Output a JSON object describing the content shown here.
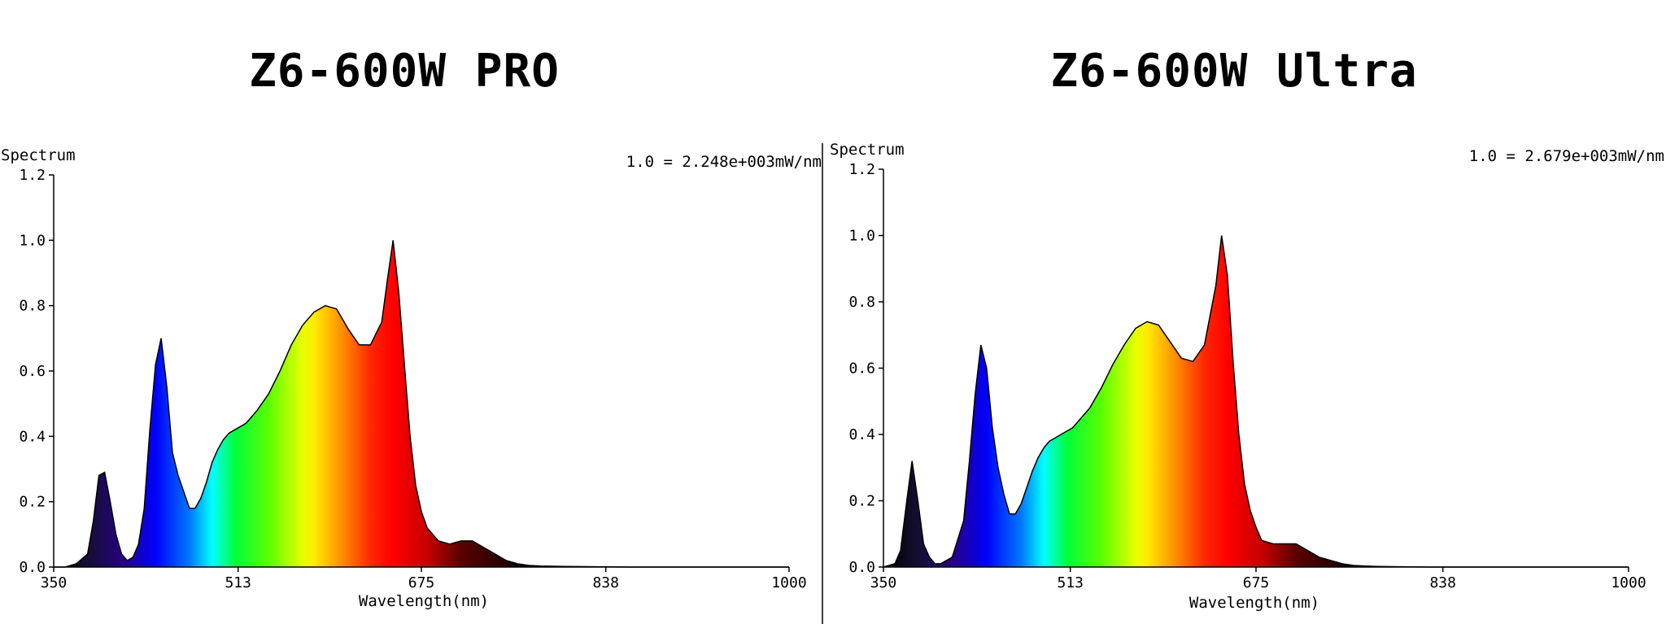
{
  "colors": {
    "axis": "#000000",
    "background": "#ffffff",
    "divider": "#000000"
  },
  "chart_data": [
    {
      "type": "area",
      "title": "Z6-600W PRO",
      "ylabel": "Spectrum",
      "xlabel": "Wavelength(nm)",
      "annotation": "1.0 = 2.248e+003mW/nm",
      "xlim": [
        350,
        1000
      ],
      "ylim": [
        0,
        1.2
      ],
      "xticks": [
        350,
        513,
        675,
        838,
        1000
      ],
      "xtick_labels": [
        "350",
        "513",
        "675",
        "838",
        "1000"
      ],
      "yticks": [
        0,
        0.2,
        0.4,
        0.6,
        0.8,
        1.0,
        1.2
      ],
      "ytick_labels": [
        "0.0",
        "0.2",
        "0.4",
        "0.6",
        "0.8",
        "1.0",
        "1.2"
      ],
      "fill": "wavelength-colored spectrum",
      "x": [
        350,
        360,
        370,
        380,
        385,
        390,
        395,
        400,
        405,
        410,
        415,
        420,
        425,
        430,
        435,
        440,
        445,
        450,
        455,
        460,
        465,
        470,
        475,
        480,
        485,
        490,
        495,
        500,
        505,
        510,
        515,
        520,
        525,
        530,
        540,
        550,
        560,
        570,
        580,
        590,
        600,
        610,
        620,
        630,
        640,
        645,
        650,
        655,
        660,
        665,
        670,
        675,
        680,
        690,
        700,
        710,
        720,
        730,
        740,
        750,
        760,
        770,
        780,
        800,
        830,
        860,
        900,
        1000
      ],
      "values": [
        0.0,
        0.0,
        0.01,
        0.04,
        0.14,
        0.28,
        0.29,
        0.2,
        0.1,
        0.04,
        0.02,
        0.03,
        0.07,
        0.18,
        0.42,
        0.62,
        0.7,
        0.55,
        0.35,
        0.28,
        0.23,
        0.18,
        0.18,
        0.21,
        0.26,
        0.32,
        0.36,
        0.39,
        0.41,
        0.42,
        0.43,
        0.44,
        0.46,
        0.48,
        0.53,
        0.6,
        0.68,
        0.74,
        0.78,
        0.8,
        0.79,
        0.73,
        0.68,
        0.68,
        0.75,
        0.88,
        1.0,
        0.84,
        0.62,
        0.4,
        0.25,
        0.17,
        0.12,
        0.08,
        0.07,
        0.08,
        0.08,
        0.06,
        0.04,
        0.02,
        0.01,
        0.005,
        0.003,
        0.002,
        0.001,
        0.0,
        0.0,
        0.0
      ]
    },
    {
      "type": "area",
      "title": "Z6-600W Ultra",
      "ylabel": "Spectrum",
      "xlabel": "Wavelength(nm)",
      "annotation": "1.0 = 2.679e+003mW/nm",
      "xlim": [
        350,
        1000
      ],
      "ylim": [
        0,
        1.2
      ],
      "xticks": [
        350,
        513,
        675,
        838,
        1000
      ],
      "xtick_labels": [
        "350",
        "513",
        "675",
        "838",
        "1000"
      ],
      "yticks": [
        0,
        0.2,
        0.4,
        0.6,
        0.8,
        1.0,
        1.2
      ],
      "ytick_labels": [
        "0.0",
        "0.2",
        "0.4",
        "0.6",
        "0.8",
        "1.0",
        "1.2"
      ],
      "fill": "wavelength-colored spectrum",
      "x": [
        350,
        360,
        365,
        370,
        375,
        380,
        385,
        390,
        395,
        400,
        410,
        420,
        425,
        430,
        435,
        440,
        445,
        450,
        455,
        460,
        465,
        470,
        475,
        480,
        485,
        490,
        495,
        500,
        505,
        510,
        515,
        520,
        530,
        540,
        550,
        560,
        570,
        580,
        590,
        600,
        610,
        620,
        630,
        640,
        645,
        650,
        655,
        660,
        665,
        670,
        675,
        680,
        690,
        700,
        710,
        720,
        730,
        740,
        750,
        760,
        770,
        780,
        800,
        830,
        860,
        900,
        1000
      ],
      "values": [
        0.0,
        0.01,
        0.05,
        0.19,
        0.32,
        0.2,
        0.07,
        0.03,
        0.01,
        0.01,
        0.03,
        0.14,
        0.32,
        0.52,
        0.67,
        0.6,
        0.42,
        0.3,
        0.22,
        0.16,
        0.16,
        0.19,
        0.24,
        0.29,
        0.33,
        0.36,
        0.38,
        0.39,
        0.4,
        0.41,
        0.42,
        0.44,
        0.48,
        0.54,
        0.61,
        0.67,
        0.72,
        0.74,
        0.73,
        0.68,
        0.63,
        0.62,
        0.67,
        0.85,
        1.0,
        0.88,
        0.62,
        0.4,
        0.25,
        0.17,
        0.12,
        0.08,
        0.07,
        0.07,
        0.07,
        0.05,
        0.03,
        0.02,
        0.01,
        0.005,
        0.003,
        0.002,
        0.001,
        0.0,
        0.0,
        0.0,
        0.0
      ]
    }
  ]
}
